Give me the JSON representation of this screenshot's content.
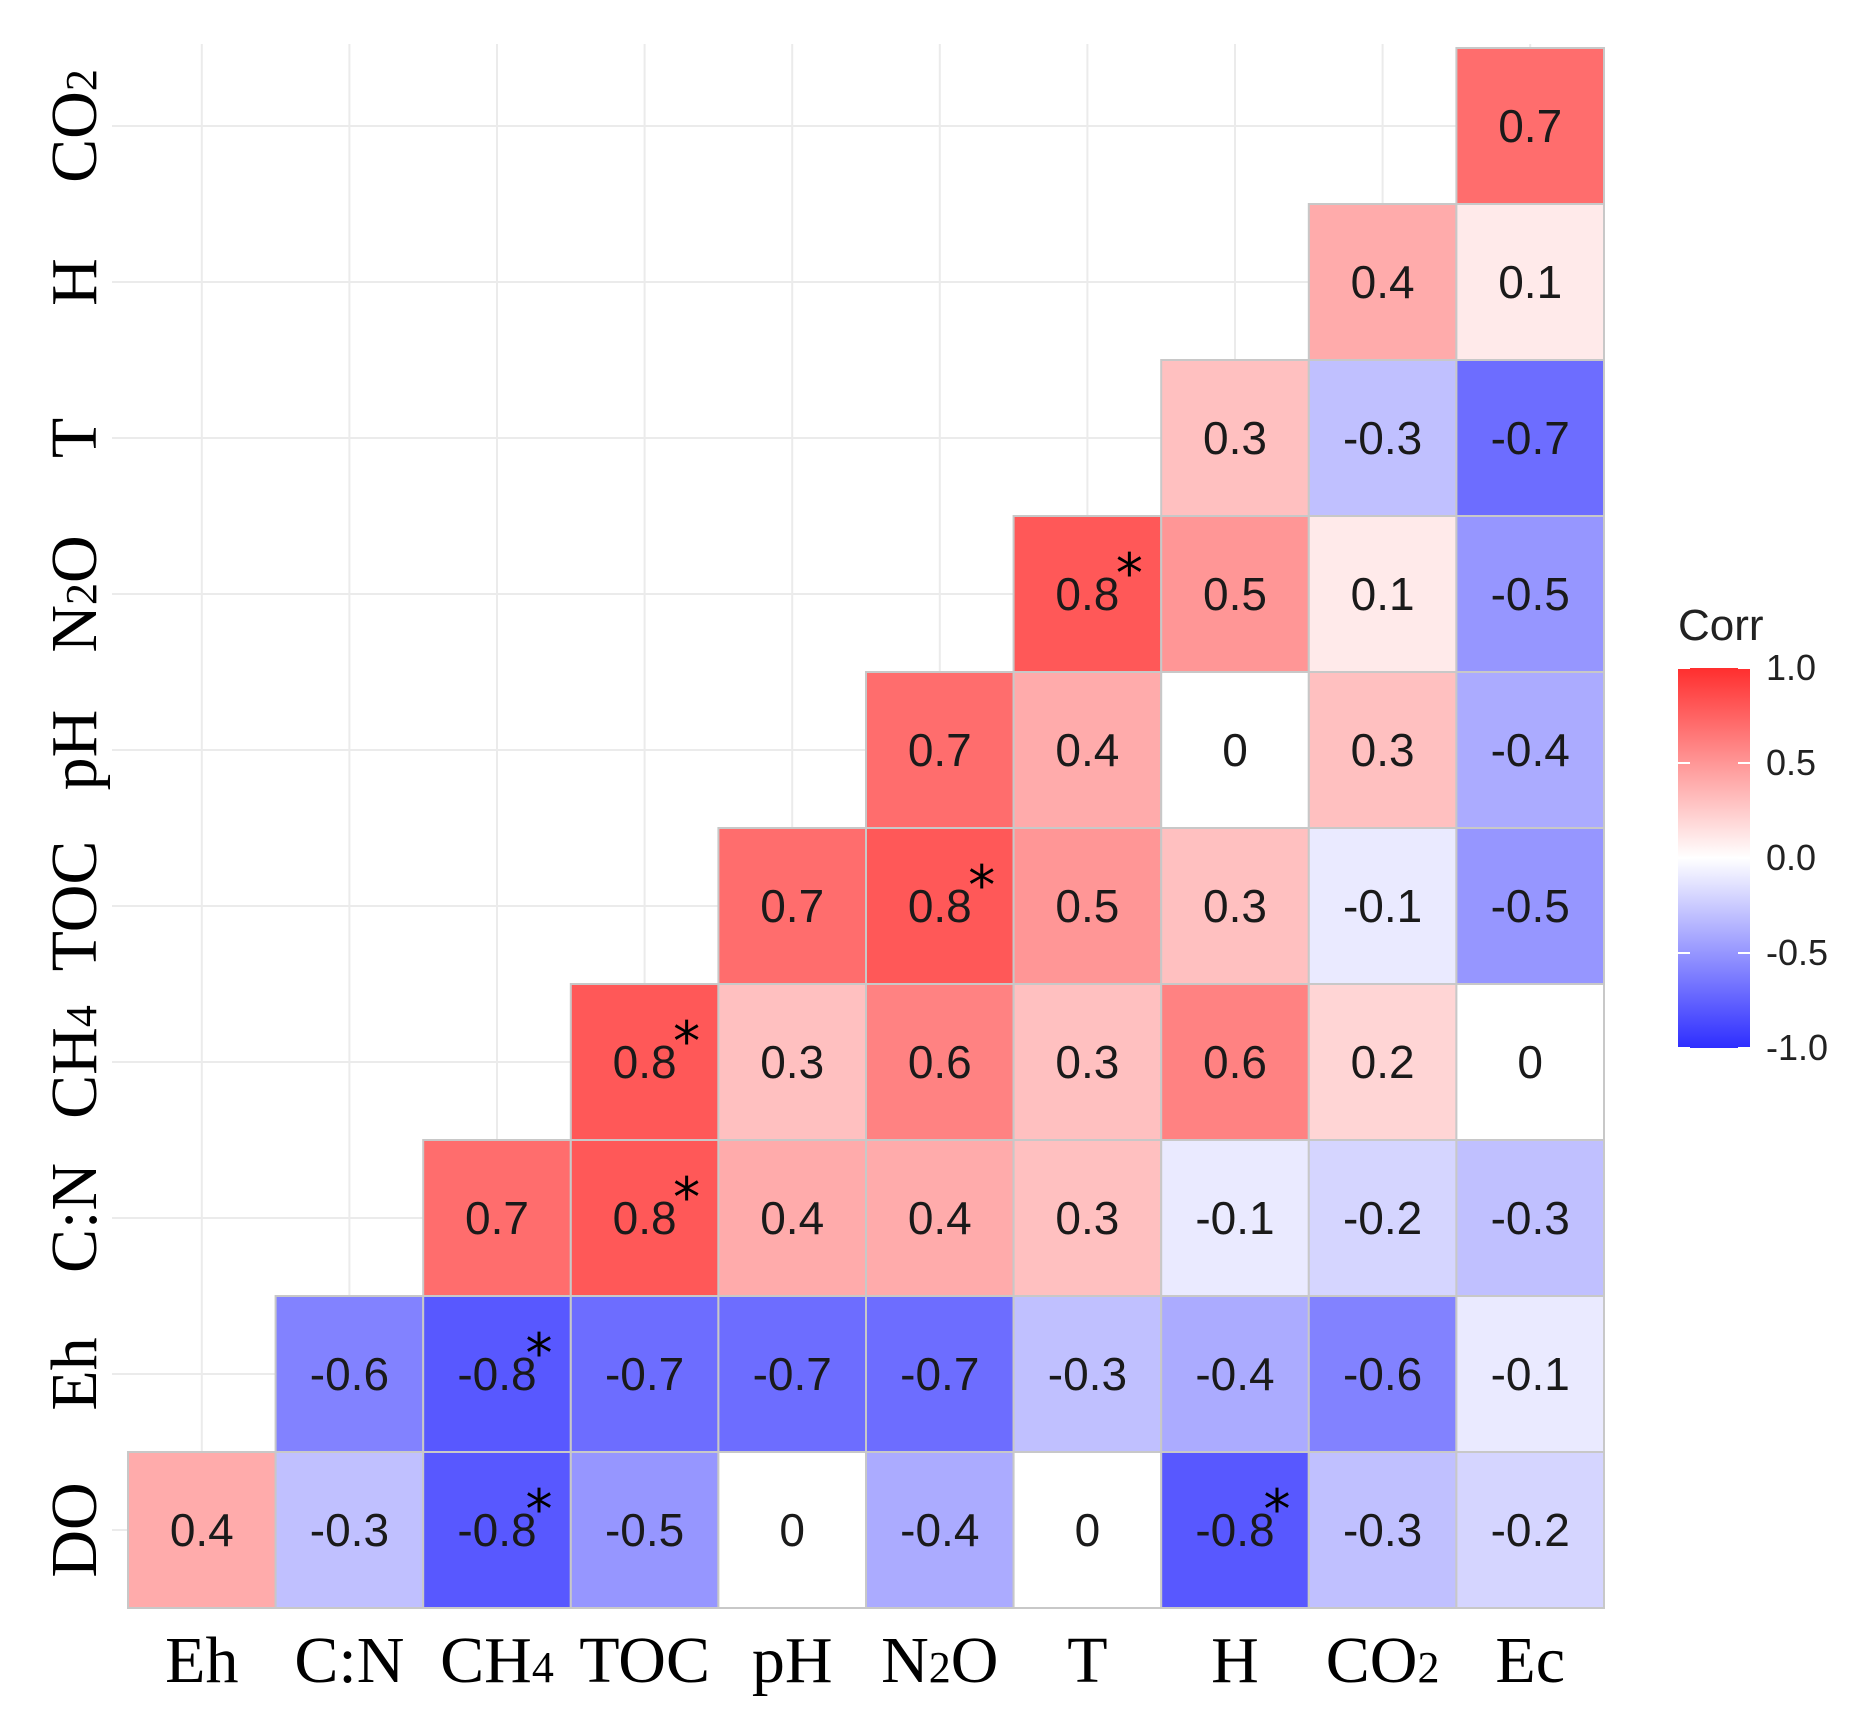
{
  "chart_data": {
    "type": "heatmap",
    "subtype": "lower-triangular correlation matrix",
    "x_labels": [
      {
        "base": "Eh",
        "sub": ""
      },
      {
        "base": "C:N",
        "sub": ""
      },
      {
        "base": "CH",
        "sub": "4"
      },
      {
        "base": "TOC",
        "sub": ""
      },
      {
        "base": "pH",
        "sub": ""
      },
      {
        "base": "N",
        "sub": "2",
        "post": "O"
      },
      {
        "base": "T",
        "sub": ""
      },
      {
        "base": "H",
        "sub": ""
      },
      {
        "base": "CO",
        "sub": "2"
      },
      {
        "base": "Ec",
        "sub": ""
      }
    ],
    "y_labels": [
      {
        "base": "DO",
        "sub": ""
      },
      {
        "base": "Eh",
        "sub": ""
      },
      {
        "base": "C:N",
        "sub": ""
      },
      {
        "base": "CH",
        "sub": "4"
      },
      {
        "base": "TOC",
        "sub": ""
      },
      {
        "base": "pH",
        "sub": ""
      },
      {
        "base": "N",
        "sub": "2",
        "post": "O"
      },
      {
        "base": "T",
        "sub": ""
      },
      {
        "base": "H",
        "sub": ""
      },
      {
        "base": "CO",
        "sub": "2"
      }
    ],
    "rows": [
      {
        "y": "DO",
        "values": [
          0.4,
          -0.3,
          -0.8,
          -0.5,
          0,
          -0.4,
          0,
          -0.8,
          -0.3,
          -0.2
        ],
        "labels": [
          "0.4",
          "-0.3",
          "-0.8",
          "-0.5",
          "0",
          "-0.4",
          "0",
          "-0.8",
          "-0.3",
          "-0.2"
        ],
        "significant": [
          false,
          false,
          true,
          false,
          false,
          false,
          false,
          true,
          false,
          false
        ]
      },
      {
        "y": "Eh",
        "values": [
          null,
          -0.6,
          -0.8,
          -0.7,
          -0.7,
          -0.7,
          -0.3,
          -0.4,
          -0.6,
          -0.1
        ],
        "labels": [
          "",
          "-0.6",
          "-0.8",
          "-0.7",
          "-0.7",
          "-0.7",
          "-0.3",
          "-0.4",
          "-0.6",
          "-0.1"
        ],
        "significant": [
          false,
          false,
          true,
          false,
          false,
          false,
          false,
          false,
          false,
          false
        ]
      },
      {
        "y": "C:N",
        "values": [
          null,
          null,
          0.7,
          0.8,
          0.4,
          0.4,
          0.3,
          -0.1,
          -0.2,
          -0.3
        ],
        "labels": [
          "",
          "",
          "0.7",
          "0.8",
          "0.4",
          "0.4",
          "0.3",
          "-0.1",
          "-0.2",
          "-0.3"
        ],
        "significant": [
          false,
          false,
          false,
          true,
          false,
          false,
          false,
          false,
          false,
          false
        ]
      },
      {
        "y": "CH4",
        "values": [
          null,
          null,
          null,
          0.8,
          0.3,
          0.6,
          0.3,
          0.6,
          0.2,
          0
        ],
        "labels": [
          "",
          "",
          "",
          "0.8",
          "0.3",
          "0.6",
          "0.3",
          "0.6",
          "0.2",
          "0"
        ],
        "significant": [
          false,
          false,
          false,
          true,
          false,
          false,
          false,
          false,
          false,
          false
        ]
      },
      {
        "y": "TOC",
        "values": [
          null,
          null,
          null,
          null,
          0.7,
          0.8,
          0.5,
          0.3,
          -0.1,
          -0.5
        ],
        "labels": [
          "",
          "",
          "",
          "",
          "0.7",
          "0.8",
          "0.5",
          "0.3",
          "-0.1",
          "-0.5"
        ],
        "significant": [
          false,
          false,
          false,
          false,
          false,
          true,
          false,
          false,
          false,
          false
        ]
      },
      {
        "y": "pH",
        "values": [
          null,
          null,
          null,
          null,
          null,
          0.7,
          0.4,
          0,
          0.3,
          -0.4
        ],
        "labels": [
          "",
          "",
          "",
          "",
          "",
          "0.7",
          "0.4",
          "0",
          "0.3",
          "-0.4"
        ],
        "significant": [
          false,
          false,
          false,
          false,
          false,
          false,
          false,
          false,
          false,
          false
        ]
      },
      {
        "y": "N2O",
        "values": [
          null,
          null,
          null,
          null,
          null,
          null,
          0.8,
          0.5,
          0.1,
          -0.5
        ],
        "labels": [
          "",
          "",
          "",
          "",
          "",
          "",
          "0.8",
          "0.5",
          "0.1",
          "-0.5"
        ],
        "significant": [
          false,
          false,
          false,
          false,
          false,
          false,
          true,
          false,
          false,
          false
        ]
      },
      {
        "y": "T",
        "values": [
          null,
          null,
          null,
          null,
          null,
          null,
          null,
          0.3,
          -0.3,
          -0.7
        ],
        "labels": [
          "",
          "",
          "",
          "",
          "",
          "",
          "",
          "0.3",
          "-0.3",
          "-0.7"
        ],
        "significant": [
          false,
          false,
          false,
          false,
          false,
          false,
          false,
          false,
          false,
          false
        ]
      },
      {
        "y": "H",
        "values": [
          null,
          null,
          null,
          null,
          null,
          null,
          null,
          null,
          0.4,
          0.1
        ],
        "labels": [
          "",
          "",
          "",
          "",
          "",
          "",
          "",
          "",
          "0.4",
          "0.1"
        ],
        "significant": [
          false,
          false,
          false,
          false,
          false,
          false,
          false,
          false,
          false,
          false
        ]
      },
      {
        "y": "CO2",
        "values": [
          null,
          null,
          null,
          null,
          null,
          null,
          null,
          null,
          null,
          0.7
        ],
        "labels": [
          "",
          "",
          "",
          "",
          "",
          "",
          "",
          "",
          "",
          "0.7"
        ],
        "significant": [
          false,
          false,
          false,
          false,
          false,
          false,
          false,
          false,
          false,
          false
        ]
      }
    ],
    "significance_marker": "*",
    "legend": {
      "title": "Corr",
      "ticks": [
        "1.0",
        "0.5",
        "0.0",
        "-0.5",
        "-1.0"
      ],
      "range": [
        -1.0,
        1.0
      ],
      "placement": "right"
    },
    "colors": {
      "high": "#ff0000",
      "mid": "#ffffff",
      "low": "#0000ff",
      "grid": "#ebebeb",
      "cell_border": "#c8c8c8"
    }
  }
}
